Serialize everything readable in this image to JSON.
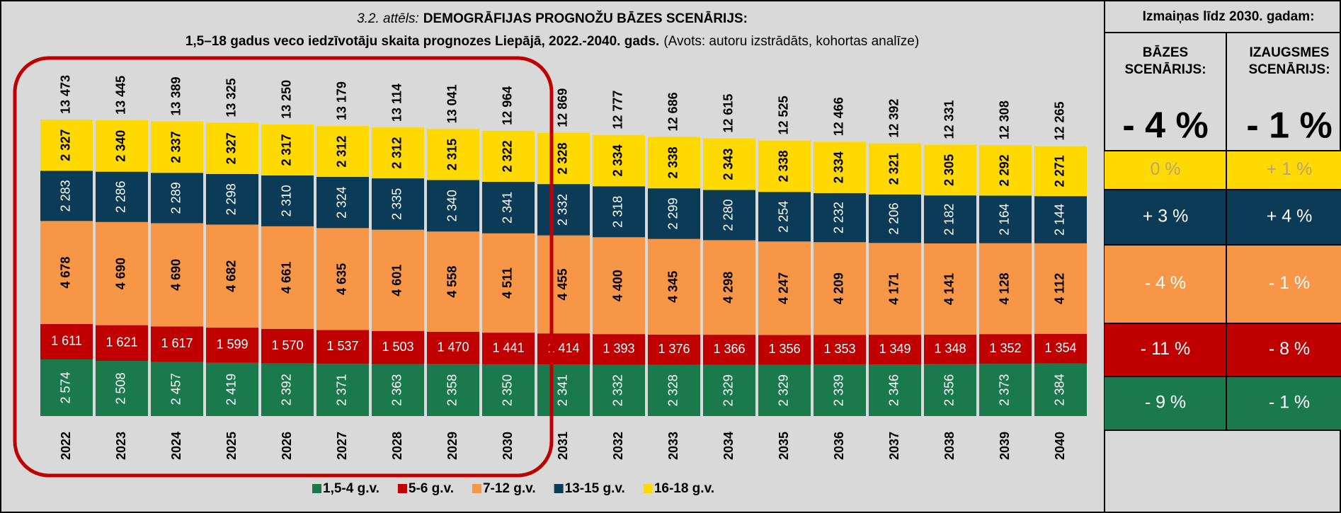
{
  "chart_data": {
    "type": "stacked_bar",
    "title_label": "3.2. attēls:",
    "title": "DEMOGRĀFIJAS PROGNOŽU BĀZES SCENĀRIJS:",
    "subtitle": "1,5–18 gadus veco iedzīvotāju skaita prognozes Liepājā, 2022.-2040. gads.",
    "source": "(Avots: autoru izstrādāts, kohortas analīze)",
    "categories": [
      "2022",
      "2023",
      "2024",
      "2025",
      "2026",
      "2027",
      "2028",
      "2029",
      "2030",
      "2031",
      "2032",
      "2033",
      "2034",
      "2035",
      "2036",
      "2037",
      "2038",
      "2039",
      "2040"
    ],
    "series": [
      {
        "name": "1,5-4 g.v.",
        "color": "#1b7a4d",
        "values": [
          2574,
          2508,
          2457,
          2419,
          2392,
          2371,
          2363,
          2358,
          2350,
          2341,
          2332,
          2328,
          2329,
          2329,
          2339,
          2346,
          2356,
          2373,
          2384
        ],
        "value_labels": [
          "2 574",
          "2 508",
          "2 457",
          "2 419",
          "2 392",
          "2 371",
          "2 363",
          "2 358",
          "2 350",
          "2 341",
          "2 332",
          "2 328",
          "2 329",
          "2 329",
          "2 339",
          "2 346",
          "2 356",
          "2 373",
          "2 384"
        ]
      },
      {
        "name": "5-6 g.v.",
        "color": "#c00000",
        "values": [
          1611,
          1621,
          1617,
          1599,
          1570,
          1537,
          1503,
          1470,
          1441,
          1414,
          1393,
          1376,
          1366,
          1356,
          1353,
          1349,
          1348,
          1352,
          1354
        ],
        "value_labels": [
          "1 611",
          "1 621",
          "1 617",
          "1 599",
          "1 570",
          "1 537",
          "1 503",
          "1 470",
          "1 441",
          "1 414",
          "1 393",
          "1 376",
          "1 366",
          "1 356",
          "1 353",
          "1 349",
          "1 348",
          "1 352",
          "1 354"
        ]
      },
      {
        "name": "7-12 g.v.",
        "color": "#f79646",
        "values": [
          4678,
          4690,
          4690,
          4682,
          4661,
          4635,
          4601,
          4558,
          4511,
          4455,
          4400,
          4345,
          4298,
          4247,
          4209,
          4171,
          4141,
          4128,
          4112
        ],
        "value_labels": [
          "4 678",
          "4 690",
          "4 690",
          "4 682",
          "4 661",
          "4 635",
          "4 601",
          "4 558",
          "4 511",
          "4 455",
          "4 400",
          "4 345",
          "4 298",
          "4 247",
          "4 209",
          "4 171",
          "4 141",
          "4 128",
          "4 112"
        ]
      },
      {
        "name": "13-15 g.v.",
        "color": "#0b3b56",
        "values": [
          2283,
          2286,
          2289,
          2298,
          2310,
          2324,
          2335,
          2340,
          2341,
          2332,
          2318,
          2299,
          2280,
          2254,
          2232,
          2206,
          2182,
          2164,
          2144
        ],
        "value_labels": [
          "2 283",
          "2 286",
          "2 289",
          "2 298",
          "2 310",
          "2 324",
          "2 335",
          "2 340",
          "2 341",
          "2 332",
          "2 318",
          "2 299",
          "2 280",
          "2 254",
          "2 232",
          "2 206",
          "2 182",
          "2 164",
          "2 144"
        ]
      },
      {
        "name": "16-18 g.v.",
        "color": "#ffd900",
        "values": [
          2327,
          2340,
          2337,
          2327,
          2317,
          2312,
          2312,
          2315,
          2322,
          2328,
          2334,
          2338,
          2343,
          2338,
          2334,
          2321,
          2305,
          2292,
          2271
        ],
        "value_labels": [
          "2 327",
          "2 340",
          "2 337",
          "2 327",
          "2 317",
          "2 312",
          "2 312",
          "2 315",
          "2 322",
          "2 328",
          "2 334",
          "2 338",
          "2 343",
          "2 338",
          "2 334",
          "2 321",
          "2 305",
          "2 292",
          "2 271"
        ]
      }
    ],
    "totals": {
      "values": [
        13473,
        13445,
        13389,
        13325,
        13250,
        13179,
        13114,
        13041,
        12964,
        12869,
        12777,
        12686,
        12615,
        12525,
        12466,
        12392,
        12331,
        12308,
        12265
      ],
      "value_labels": [
        "13 473",
        "13 445",
        "13 389",
        "13 325",
        "13 250",
        "13 179",
        "13 114",
        "13 041",
        "12 964",
        "12 869",
        "12 777",
        "12 686",
        "12 615",
        "12 525",
        "12 466",
        "12 392",
        "12 331",
        "12 308",
        "12 265"
      ]
    }
  },
  "side_table": {
    "title": "Izmaiņas līdz 2030. gadam:",
    "columns": [
      [
        "BĀZES",
        "SCENĀRIJS:"
      ],
      [
        "IZAUGSMES",
        "SCENĀRIJS:"
      ]
    ],
    "total": [
      "- 4 %",
      "- 1 %"
    ],
    "rows": [
      [
        "0 %",
        "+ 1 %"
      ],
      [
        "+ 3 %",
        "+ 4 %"
      ],
      [
        "- 4 %",
        "- 1 %"
      ],
      [
        "- 11 %",
        "- 8 %"
      ],
      [
        "- 9 %",
        "- 1 %"
      ]
    ]
  }
}
